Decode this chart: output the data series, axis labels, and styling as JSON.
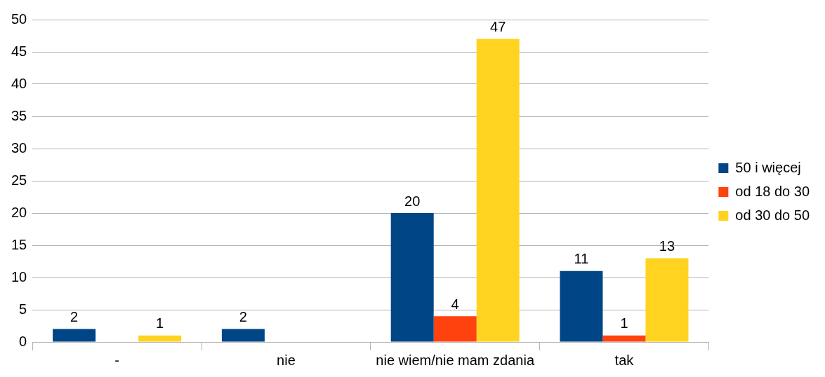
{
  "chart_data": {
    "type": "bar",
    "categories": [
      "-",
      "nie",
      "nie wiem/nie mam zdania",
      "tak"
    ],
    "series": [
      {
        "name": "50 i więcej",
        "color": "#004586",
        "values": [
          2,
          2,
          20,
          11
        ]
      },
      {
        "name": "od 18 do 30",
        "color": "#ff420e",
        "values": [
          null,
          null,
          4,
          1
        ]
      },
      {
        "name": "od 30 do 50",
        "color": "#ffd320",
        "values": [
          1,
          null,
          47,
          13
        ]
      }
    ],
    "ylim": [
      0,
      50
    ],
    "yticks": [
      0,
      5,
      10,
      15,
      20,
      25,
      30,
      35,
      40,
      45,
      50
    ],
    "grid": "y",
    "legend": "right",
    "data_labels": true
  }
}
